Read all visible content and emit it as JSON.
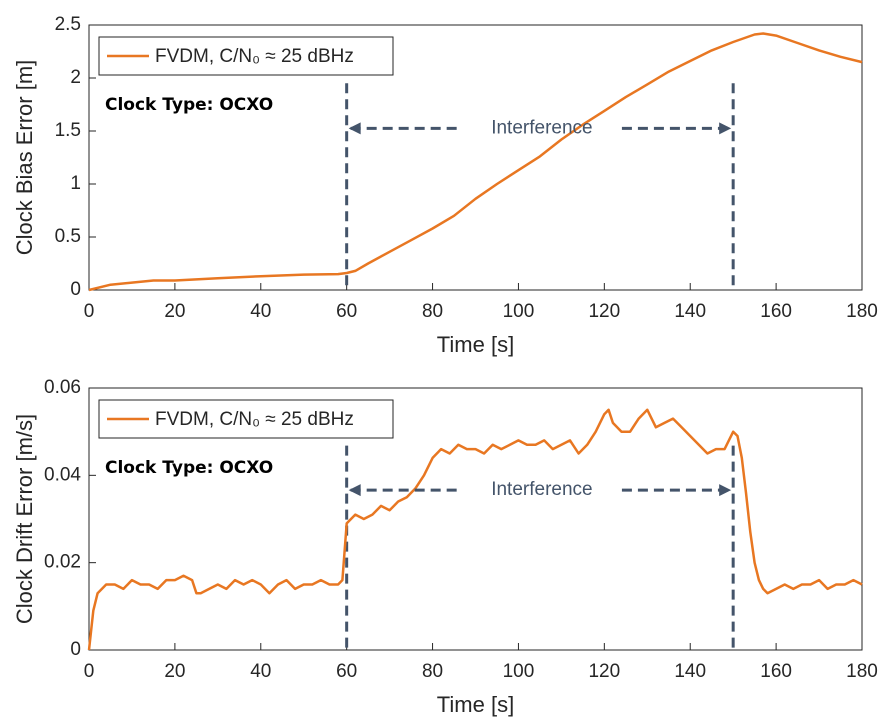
{
  "chart_data": [
    {
      "type": "line",
      "xlabel": "Time [s]",
      "ylabel": "Clock Bias Error [m]",
      "annotations": [
        "Clock Type: OCXO",
        "Interference"
      ],
      "markers": [
        60,
        150
      ],
      "x": [
        0,
        5,
        10,
        15,
        20,
        25,
        30,
        40,
        50,
        58,
        60,
        62,
        65,
        70,
        75,
        80,
        85,
        90,
        95,
        100,
        105,
        110,
        115,
        120,
        125,
        130,
        135,
        140,
        145,
        150,
        155,
        157,
        160,
        165,
        170,
        175,
        180
      ],
      "series": [
        {
          "name": "FVDM, C/N₀ ≈ 25 dBHz",
          "color": "#e87722",
          "values": [
            0,
            0.05,
            0.07,
            0.09,
            0.09,
            0.1,
            0.11,
            0.13,
            0.145,
            0.15,
            0.16,
            0.18,
            0.25,
            0.36,
            0.47,
            0.58,
            0.7,
            0.86,
            1.0,
            1.13,
            1.26,
            1.42,
            1.56,
            1.69,
            1.82,
            1.94,
            2.06,
            2.16,
            2.26,
            2.34,
            2.41,
            2.42,
            2.4,
            2.33,
            2.26,
            2.2,
            2.15
          ]
        }
      ],
      "xlim": [
        0,
        180
      ],
      "xticks": [
        0,
        20,
        40,
        60,
        80,
        100,
        120,
        140,
        160,
        180
      ],
      "ylim": [
        0,
        2.5
      ],
      "yticks": [
        0,
        0.5,
        1,
        1.5,
        2,
        2.5
      ],
      "legend": "upper left",
      "grid": false
    },
    {
      "type": "line",
      "xlabel": "Time [s]",
      "ylabel": "Clock Drift Error [m/s]",
      "annotations": [
        "Clock Type: OCXO",
        "Interference"
      ],
      "markers": [
        60,
        150
      ],
      "x": [
        0,
        1,
        2,
        3,
        4,
        6,
        8,
        10,
        12,
        14,
        16,
        18,
        20,
        22,
        24,
        25,
        26,
        28,
        30,
        32,
        34,
        36,
        38,
        40,
        42,
        44,
        46,
        48,
        50,
        52,
        54,
        56,
        58,
        59,
        60,
        61,
        62,
        64,
        66,
        68,
        70,
        72,
        74,
        76,
        78,
        80,
        82,
        84,
        86,
        88,
        90,
        92,
        94,
        96,
        98,
        100,
        102,
        104,
        106,
        108,
        110,
        112,
        114,
        116,
        118,
        120,
        121,
        122,
        124,
        126,
        128,
        130,
        132,
        134,
        136,
        138,
        140,
        142,
        144,
        146,
        148,
        150,
        151,
        152,
        153,
        154,
        155,
        156,
        157,
        158,
        160,
        162,
        164,
        166,
        168,
        170,
        172,
        174,
        176,
        178,
        180
      ],
      "series": [
        {
          "name": "FVDM, C/N₀ ≈ 25 dBHz",
          "color": "#e87722",
          "values": [
            0,
            0.009,
            0.013,
            0.014,
            0.015,
            0.015,
            0.014,
            0.016,
            0.015,
            0.015,
            0.014,
            0.016,
            0.016,
            0.017,
            0.016,
            0.013,
            0.013,
            0.014,
            0.015,
            0.014,
            0.016,
            0.015,
            0.016,
            0.015,
            0.013,
            0.015,
            0.016,
            0.014,
            0.015,
            0.015,
            0.016,
            0.015,
            0.015,
            0.016,
            0.029,
            0.03,
            0.031,
            0.03,
            0.031,
            0.033,
            0.032,
            0.034,
            0.035,
            0.037,
            0.04,
            0.044,
            0.046,
            0.045,
            0.047,
            0.046,
            0.046,
            0.045,
            0.047,
            0.046,
            0.047,
            0.048,
            0.047,
            0.047,
            0.048,
            0.046,
            0.047,
            0.048,
            0.045,
            0.047,
            0.05,
            0.054,
            0.055,
            0.052,
            0.05,
            0.05,
            0.053,
            0.055,
            0.051,
            0.052,
            0.053,
            0.051,
            0.049,
            0.047,
            0.045,
            0.046,
            0.046,
            0.05,
            0.049,
            0.044,
            0.036,
            0.027,
            0.02,
            0.016,
            0.014,
            0.013,
            0.014,
            0.015,
            0.014,
            0.015,
            0.015,
            0.016,
            0.014,
            0.015,
            0.015,
            0.016,
            0.015
          ]
        }
      ],
      "xlim": [
        0,
        180
      ],
      "xticks": [
        0,
        20,
        40,
        60,
        80,
        100,
        120,
        140,
        160,
        180
      ],
      "ylim": [
        0,
        0.06
      ],
      "yticks": [
        0,
        0.02,
        0.04,
        0.06
      ],
      "legend": "upper left",
      "grid": false
    }
  ]
}
